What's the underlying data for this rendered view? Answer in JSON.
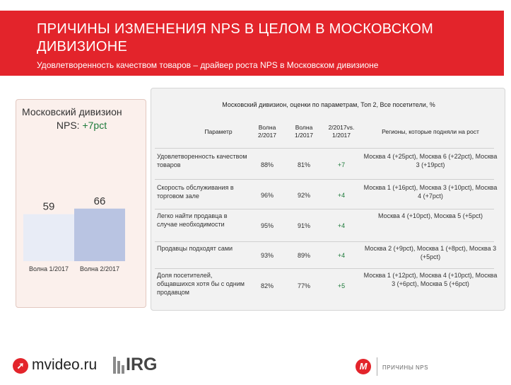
{
  "header": {
    "title": "ПРИЧИНЫ ИЗМЕНЕНИЯ NPS В ЦЕЛОМ В МОСКОВСКОМ ДИВИЗИОНЕ",
    "subtitle": "Удовлетворенность качеством товаров – драйвер роста NPS в Московском дивизионе",
    "color": "#e3242b"
  },
  "left_panel": {
    "title": "Московский дивизион",
    "nps_label": "NPS: ",
    "nps_value": "+7pct"
  },
  "chart_data": {
    "type": "bar",
    "categories": [
      "Волна 1/2017",
      "Волна 2/2017"
    ],
    "values": [
      59,
      66
    ],
    "colors": [
      "#e8ecf6",
      "#b9c4e2"
    ],
    "ylim": [
      0,
      100
    ],
    "title": "",
    "xlabel": "",
    "ylabel": ""
  },
  "table": {
    "caption": "Московский дивизион, оценки по параметрам, Топ 2, Все посетители, %",
    "headers": {
      "param": "Параметр",
      "wave2": "Волна 2/2017",
      "wave1": "Волна 1/2017",
      "diff": "2/2017vs. 1/2017",
      "regions": "Регионы, которые подняли на рост"
    },
    "rows": [
      {
        "param": "Удовлетворенность качеством товаров",
        "w2": "88%",
        "w1": "81%",
        "diff": "+7",
        "regions": "Москва 4 (+25pct), Москва 6 (+22pct), Москва 3 (+19pct)"
      },
      {
        "param": "Скорость обслуживания в торговом зале",
        "w2": "96%",
        "w1": "92%",
        "diff": "+4",
        "regions": "Москва 1 (+16pct), Москва 3 (+10pct), Москва 4 (+7pct)"
      },
      {
        "param": "Легко найти продавца в случае необходимости",
        "w2": "95%",
        "w1": "91%",
        "diff": "+4",
        "regions": "Москва 4 (+10pct), Москва 5 (+5pct)"
      },
      {
        "param": "Продавцы подходят сами",
        "w2": "93%",
        "w1": "89%",
        "diff": "+4",
        "regions": "Москва 2 (+9pct), Москва 1 (+8pct), Москва 3 (+5pct)"
      },
      {
        "param": "Доля посетителей, общавшихся хотя бы с одним продавцом",
        "w2": "82%",
        "w1": "77%",
        "diff": "+5",
        "regions": "Москва 1 (+12pct), Москва 4 (+10pct), Москва 3 (+6pct), Москва 5 (+6pct)"
      }
    ]
  },
  "footer": {
    "mvideo_logo": "mvideo.ru",
    "irg_logo": "IRG",
    "section_label": "ПРИЧИНЫ NPS"
  }
}
